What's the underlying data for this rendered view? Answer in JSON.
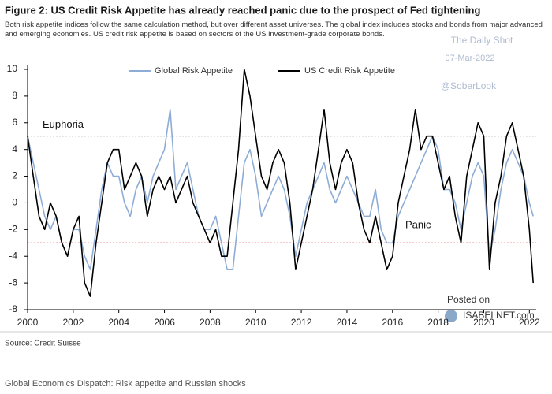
{
  "chart_data": {
    "type": "line",
    "title": "Figure 2: US Credit Risk Appetite has already reached panic due to the prospect of Fed tightening",
    "subtitle": "Both risk appetite indices follow the same calculation method, but over different asset universes. The global index includes stocks and bonds from major advanced and emerging economies. US credit risk appetite is based on sectors of the US investment-grade corporate bonds.",
    "x": [
      2000,
      2000.25,
      2000.5,
      2000.75,
      2001,
      2001.25,
      2001.5,
      2001.75,
      2002,
      2002.25,
      2002.5,
      2002.75,
      2003,
      2003.25,
      2003.5,
      2003.75,
      2004,
      2004.25,
      2004.5,
      2004.75,
      2005,
      2005.25,
      2005.5,
      2005.75,
      2006,
      2006.25,
      2006.5,
      2006.75,
      2007,
      2007.25,
      2007.5,
      2007.75,
      2008,
      2008.25,
      2008.5,
      2008.75,
      2009,
      2009.25,
      2009.5,
      2009.75,
      2010,
      2010.25,
      2010.5,
      2010.75,
      2011,
      2011.25,
      2011.5,
      2011.75,
      2012,
      2012.25,
      2012.5,
      2012.75,
      2013,
      2013.25,
      2013.5,
      2013.75,
      2014,
      2014.25,
      2014.5,
      2014.75,
      2015,
      2015.25,
      2015.5,
      2015.75,
      2016,
      2016.25,
      2016.5,
      2016.75,
      2017,
      2017.25,
      2017.5,
      2017.75,
      2018,
      2018.25,
      2018.5,
      2018.75,
      2019,
      2019.25,
      2019.5,
      2019.75,
      2020,
      2020.25,
      2020.5,
      2020.75,
      2021,
      2021.25,
      2021.5,
      2021.75,
      2022,
      2022.17
    ],
    "series": [
      {
        "name": "Global Risk Appetite",
        "color": "#8eadd6",
        "values": [
          5,
          3,
          1,
          -1,
          -2,
          -1,
          -3,
          -4,
          -2,
          -2,
          -4,
          -5,
          -2,
          1,
          3,
          2,
          2,
          0,
          -1,
          1,
          2,
          0,
          2,
          3,
          4,
          7,
          1,
          2,
          3,
          1,
          -1,
          -2,
          -2,
          -1,
          -3,
          -5,
          -5,
          -1,
          3,
          4,
          2,
          -1,
          0,
          1,
          2,
          1,
          -1,
          -4,
          -2,
          0,
          1,
          2,
          3,
          1,
          0,
          1,
          2,
          1,
          0,
          -1,
          -1,
          1,
          -2,
          -3,
          -3,
          -1,
          0,
          1,
          2,
          3,
          4,
          5,
          4,
          1,
          1,
          0,
          -2,
          0,
          2,
          3,
          2,
          -4,
          -2,
          1,
          3,
          4,
          3,
          2,
          0,
          -1
        ]
      },
      {
        "name": "US Credit Risk Appetite",
        "color": "#000000",
        "values": [
          5,
          2,
          -1,
          -2,
          0,
          -1,
          -3,
          -4,
          -2,
          -1,
          -6,
          -7,
          -3,
          0,
          3,
          4,
          4,
          1,
          2,
          3,
          2,
          -1,
          1,
          2,
          1,
          2,
          0,
          1,
          2,
          0,
          -1,
          -2,
          -3,
          -2,
          -4,
          -4,
          0,
          4,
          10,
          8,
          5,
          2,
          1,
          3,
          4,
          3,
          0,
          -5,
          -3,
          -1,
          1,
          4,
          7,
          3,
          1,
          3,
          4,
          3,
          0,
          -2,
          -3,
          -1,
          -3,
          -5,
          -4,
          0,
          2,
          4,
          7,
          4,
          5,
          5,
          3,
          1,
          2,
          -1,
          -3,
          2,
          4,
          6,
          5,
          -5,
          0,
          2,
          5,
          6,
          4,
          2,
          -2,
          -6
        ]
      }
    ],
    "xlim": [
      2000,
      2022.3
    ],
    "xticks": [
      2000,
      2002,
      2004,
      2006,
      2008,
      2010,
      2012,
      2014,
      2016,
      2018,
      2020,
      2022
    ],
    "ylim": [
      -8,
      10
    ],
    "yticks": [
      -8,
      -6,
      -4,
      -2,
      0,
      2,
      4,
      6,
      8,
      10
    ],
    "euphoria_level": 5,
    "panic_level": -3,
    "annotations": [
      "Euphoria",
      "Panic"
    ],
    "watermarks": [
      "The Daily Shot",
      "07-Mar-2022",
      "@SoberLook",
      "Posted on",
      "ISABELNET.com"
    ],
    "source": "Source: Credit Suisse",
    "footer": "Global Economics Dispatch: Risk appetite and Russian shocks"
  }
}
